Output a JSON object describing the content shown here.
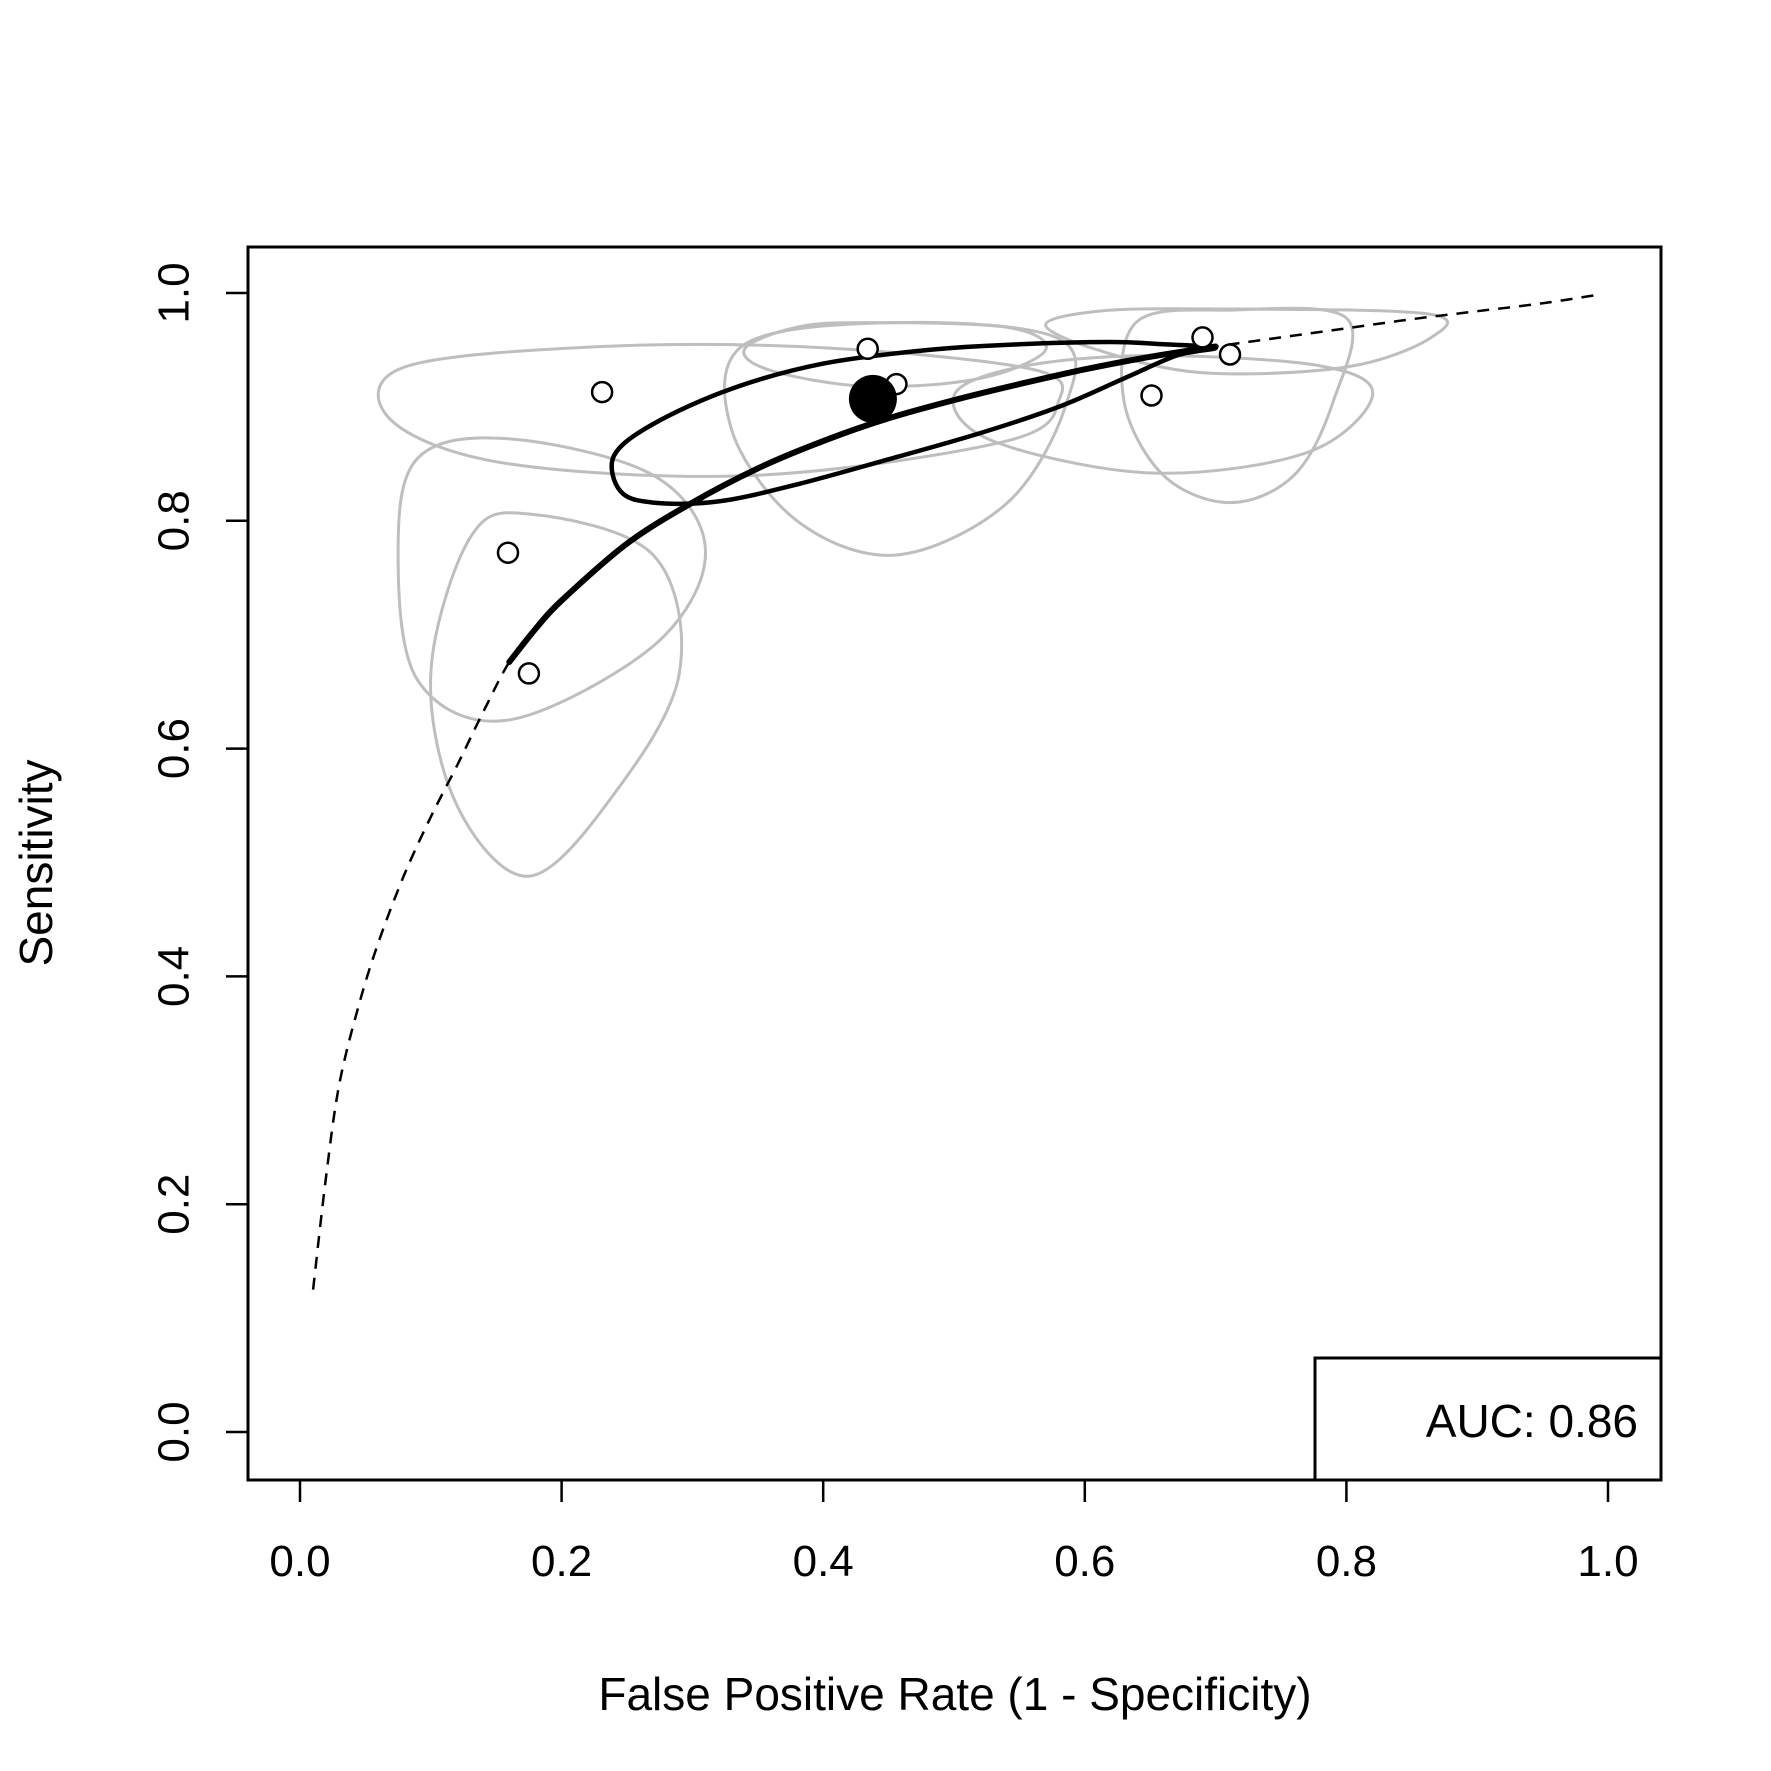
{
  "chart_data": {
    "type": "scatter",
    "title": "",
    "xlabel": "False Positive Rate (1 - Specificity)",
    "ylabel": "Sensitivity",
    "xlim": [
      -0.04,
      1.04
    ],
    "ylim": [
      -0.04,
      1.04
    ],
    "xticks": [
      "0.0",
      "0.2",
      "0.4",
      "0.6",
      "0.8",
      "1.0"
    ],
    "yticks": [
      "0.0",
      "0.2",
      "0.4",
      "0.6",
      "0.8",
      "1.0"
    ],
    "grid": false,
    "legend_text": "AUC: 0.86",
    "legend_position": "bottom-right",
    "colors": {
      "main": "#000000",
      "study_ellipse": "#bebebe",
      "background": "#ffffff"
    },
    "study_points": [
      {
        "x": 0.159,
        "y": 0.772
      },
      {
        "x": 0.175,
        "y": 0.666
      },
      {
        "x": 0.231,
        "y": 0.913
      },
      {
        "x": 0.434,
        "y": 0.951
      },
      {
        "x": 0.456,
        "y": 0.92
      },
      {
        "x": 0.651,
        "y": 0.91
      },
      {
        "x": 0.69,
        "y": 0.961
      },
      {
        "x": 0.711,
        "y": 0.946
      }
    ],
    "summary_point": {
      "x": 0.438,
      "y": 0.907
    },
    "sroc_curve": [
      {
        "x": 0.01,
        "y": 0.125
      },
      {
        "x": 0.02,
        "y": 0.225
      },
      {
        "x": 0.03,
        "y": 0.305
      },
      {
        "x": 0.045,
        "y": 0.375
      },
      {
        "x": 0.06,
        "y": 0.43
      },
      {
        "x": 0.08,
        "y": 0.49
      },
      {
        "x": 0.1,
        "y": 0.54
      },
      {
        "x": 0.12,
        "y": 0.585
      },
      {
        "x": 0.14,
        "y": 0.632
      },
      {
        "x": 0.16,
        "y": 0.676
      },
      {
        "x": 0.18,
        "y": 0.705
      },
      {
        "x": 0.2,
        "y": 0.73
      },
      {
        "x": 0.25,
        "y": 0.78
      },
      {
        "x": 0.3,
        "y": 0.816
      },
      {
        "x": 0.35,
        "y": 0.846
      },
      {
        "x": 0.4,
        "y": 0.87
      },
      {
        "x": 0.45,
        "y": 0.89
      },
      {
        "x": 0.5,
        "y": 0.906
      },
      {
        "x": 0.55,
        "y": 0.92
      },
      {
        "x": 0.6,
        "y": 0.933
      },
      {
        "x": 0.65,
        "y": 0.944
      },
      {
        "x": 0.7,
        "y": 0.953
      },
      {
        "x": 0.75,
        "y": 0.961
      },
      {
        "x": 0.8,
        "y": 0.969
      },
      {
        "x": 0.85,
        "y": 0.977
      },
      {
        "x": 0.9,
        "y": 0.984
      },
      {
        "x": 0.95,
        "y": 0.991
      },
      {
        "x": 0.99,
        "y": 0.998
      }
    ],
    "sroc_observed_range": [
      0.16,
      0.7
    ],
    "confidence_region": [
      {
        "x": 0.7,
        "y": 0.952
      },
      {
        "x": 0.66,
        "y": 0.955
      },
      {
        "x": 0.62,
        "y": 0.957
      },
      {
        "x": 0.55,
        "y": 0.955
      },
      {
        "x": 0.48,
        "y": 0.95
      },
      {
        "x": 0.4,
        "y": 0.938
      },
      {
        "x": 0.33,
        "y": 0.916
      },
      {
        "x": 0.27,
        "y": 0.885
      },
      {
        "x": 0.24,
        "y": 0.857
      },
      {
        "x": 0.245,
        "y": 0.826
      },
      {
        "x": 0.27,
        "y": 0.816
      },
      {
        "x": 0.32,
        "y": 0.817
      },
      {
        "x": 0.38,
        "y": 0.832
      },
      {
        "x": 0.45,
        "y": 0.854
      },
      {
        "x": 0.52,
        "y": 0.877
      },
      {
        "x": 0.58,
        "y": 0.9
      },
      {
        "x": 0.63,
        "y": 0.925
      },
      {
        "x": 0.67,
        "y": 0.945
      },
      {
        "x": 0.7,
        "y": 0.952
      }
    ],
    "study_ellipses": [
      [
        {
          "x": 0.231,
          "y": 0.953
        },
        {
          "x": 0.4,
          "y": 0.952
        },
        {
          "x": 0.56,
          "y": 0.933
        },
        {
          "x": 0.58,
          "y": 0.905
        },
        {
          "x": 0.54,
          "y": 0.87
        },
        {
          "x": 0.35,
          "y": 0.84
        },
        {
          "x": 0.16,
          "y": 0.85
        },
        {
          "x": 0.07,
          "y": 0.888
        },
        {
          "x": 0.08,
          "y": 0.935
        },
        {
          "x": 0.231,
          "y": 0.953
        }
      ],
      [
        {
          "x": 0.159,
          "y": 0.872
        },
        {
          "x": 0.27,
          "y": 0.84
        },
        {
          "x": 0.31,
          "y": 0.772
        },
        {
          "x": 0.27,
          "y": 0.69
        },
        {
          "x": 0.159,
          "y": 0.625
        },
        {
          "x": 0.09,
          "y": 0.66
        },
        {
          "x": 0.075,
          "y": 0.772
        },
        {
          "x": 0.09,
          "y": 0.855
        },
        {
          "x": 0.159,
          "y": 0.872
        }
      ],
      [
        {
          "x": 0.175,
          "y": 0.806
        },
        {
          "x": 0.27,
          "y": 0.77
        },
        {
          "x": 0.29,
          "y": 0.666
        },
        {
          "x": 0.24,
          "y": 0.56
        },
        {
          "x": 0.175,
          "y": 0.488
        },
        {
          "x": 0.12,
          "y": 0.55
        },
        {
          "x": 0.1,
          "y": 0.666
        },
        {
          "x": 0.13,
          "y": 0.785
        },
        {
          "x": 0.175,
          "y": 0.806
        }
      ],
      [
        {
          "x": 0.456,
          "y": 0.974
        },
        {
          "x": 0.58,
          "y": 0.96
        },
        {
          "x": 0.585,
          "y": 0.9
        },
        {
          "x": 0.54,
          "y": 0.815
        },
        {
          "x": 0.456,
          "y": 0.77
        },
        {
          "x": 0.38,
          "y": 0.8
        },
        {
          "x": 0.33,
          "y": 0.88
        },
        {
          "x": 0.34,
          "y": 0.955
        },
        {
          "x": 0.456,
          "y": 0.974
        }
      ],
      [
        {
          "x": 0.434,
          "y": 0.974
        },
        {
          "x": 0.54,
          "y": 0.97
        },
        {
          "x": 0.57,
          "y": 0.95
        },
        {
          "x": 0.52,
          "y": 0.925
        },
        {
          "x": 0.434,
          "y": 0.918
        },
        {
          "x": 0.36,
          "y": 0.932
        },
        {
          "x": 0.34,
          "y": 0.951
        },
        {
          "x": 0.38,
          "y": 0.97
        },
        {
          "x": 0.434,
          "y": 0.974
        }
      ],
      [
        {
          "x": 0.651,
          "y": 0.945
        },
        {
          "x": 0.78,
          "y": 0.936
        },
        {
          "x": 0.82,
          "y": 0.91
        },
        {
          "x": 0.77,
          "y": 0.86
        },
        {
          "x": 0.651,
          "y": 0.842
        },
        {
          "x": 0.53,
          "y": 0.87
        },
        {
          "x": 0.5,
          "y": 0.91
        },
        {
          "x": 0.55,
          "y": 0.935
        },
        {
          "x": 0.651,
          "y": 0.945
        }
      ],
      [
        {
          "x": 0.69,
          "y": 0.986
        },
        {
          "x": 0.86,
          "y": 0.982
        },
        {
          "x": 0.865,
          "y": 0.961
        },
        {
          "x": 0.8,
          "y": 0.935
        },
        {
          "x": 0.69,
          "y": 0.93
        },
        {
          "x": 0.61,
          "y": 0.95
        },
        {
          "x": 0.57,
          "y": 0.972
        },
        {
          "x": 0.61,
          "y": 0.984
        },
        {
          "x": 0.69,
          "y": 0.986
        }
      ],
      [
        {
          "x": 0.711,
          "y": 0.985
        },
        {
          "x": 0.8,
          "y": 0.978
        },
        {
          "x": 0.79,
          "y": 0.905
        },
        {
          "x": 0.76,
          "y": 0.84
        },
        {
          "x": 0.711,
          "y": 0.816
        },
        {
          "x": 0.66,
          "y": 0.84
        },
        {
          "x": 0.63,
          "y": 0.905
        },
        {
          "x": 0.64,
          "y": 0.975
        },
        {
          "x": 0.711,
          "y": 0.985
        }
      ]
    ]
  }
}
